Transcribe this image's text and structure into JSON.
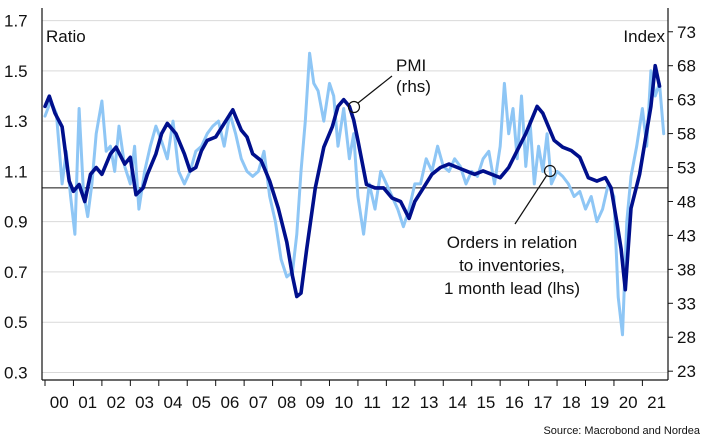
{
  "chart_data": {
    "type": "line",
    "ylabel_left": "Ratio",
    "ylabel_right": "Index",
    "left_axis": {
      "ylim": [
        0.27,
        1.75
      ],
      "ticks": [
        "0.3",
        "0.5",
        "0.7",
        "0.9",
        "1.1",
        "1.3",
        "1.5",
        "1.7"
      ],
      "tick_values": [
        0.3,
        0.5,
        0.7,
        0.9,
        1.1,
        1.3,
        1.5,
        1.7
      ]
    },
    "right_axis": {
      "ylim": [
        21.7,
        76.5
      ],
      "ticks": [
        "23",
        "28",
        "33",
        "38",
        "43",
        "48",
        "53",
        "58",
        "63",
        "68",
        "73"
      ],
      "tick_values": [
        23,
        28,
        33,
        38,
        43,
        48,
        53,
        58,
        63,
        68,
        73
      ]
    },
    "x_ticks": [
      "00",
      "01",
      "02",
      "03",
      "04",
      "05",
      "06",
      "07",
      "08",
      "09",
      "10",
      "11",
      "12",
      "13",
      "14",
      "15",
      "16",
      "17",
      "18",
      "19",
      "20",
      "21"
    ],
    "x_range": [
      2000.0,
      2021.9
    ],
    "reference_line": {
      "axis": "right",
      "value": 50
    },
    "grid": "horizontal",
    "series": [
      {
        "name": "PMI (rhs)",
        "axis": "right",
        "color": "#000f8c",
        "x": [
          2000.0,
          2000.15,
          2000.35,
          2000.6,
          2000.85,
          2001.0,
          2001.2,
          2001.4,
          2001.6,
          2001.8,
          2002.0,
          2002.3,
          2002.5,
          2002.8,
          2003.0,
          2003.2,
          2003.45,
          2003.6,
          2003.9,
          2004.1,
          2004.3,
          2004.6,
          2004.9,
          2005.1,
          2005.3,
          2005.5,
          2005.7,
          2006.0,
          2006.3,
          2006.6,
          2006.9,
          2007.1,
          2007.3,
          2007.6,
          2007.9,
          2008.2,
          2008.5,
          2008.7,
          2008.85,
          2009.0,
          2009.2,
          2009.5,
          2009.8,
          2010.1,
          2010.3,
          2010.5,
          2010.7,
          2010.85,
          2011.0,
          2011.3,
          2011.6,
          2011.9,
          2012.2,
          2012.5,
          2012.8,
          2013.0,
          2013.3,
          2013.6,
          2013.9,
          2014.2,
          2014.5,
          2014.8,
          2015.1,
          2015.4,
          2015.7,
          2016.0,
          2016.3,
          2016.6,
          2016.9,
          2017.1,
          2017.3,
          2017.5,
          2017.7,
          2017.9,
          2018.2,
          2018.5,
          2018.8,
          2019.1,
          2019.4,
          2019.7,
          2019.9,
          2020.1,
          2020.25,
          2020.4,
          2020.6,
          2020.9,
          2021.1,
          2021.3,
          2021.45,
          2021.6
        ],
        "values": [
          62,
          63.5,
          61,
          59,
          51,
          49.5,
          50.5,
          48,
          52,
          53,
          52,
          55,
          56,
          53.5,
          54.5,
          49,
          50,
          52,
          55,
          58,
          59.5,
          58,
          55,
          52.5,
          53,
          55.5,
          57,
          57.5,
          59.5,
          61.5,
          58.5,
          57.5,
          55,
          54,
          51,
          47,
          42,
          37,
          34,
          34.5,
          41,
          50,
          56,
          59,
          62,
          63,
          62,
          60,
          57,
          50.5,
          50,
          50,
          48.5,
          48,
          45.5,
          48,
          50,
          52,
          53,
          53.5,
          53,
          52.5,
          52,
          52.5,
          52,
          51.5,
          53,
          55.5,
          58,
          60,
          62,
          61,
          59,
          57,
          56,
          55.5,
          54.5,
          51.5,
          51,
          51.5,
          50,
          45,
          41,
          35,
          47,
          52,
          57,
          62,
          68,
          65
        ]
      },
      {
        "name": "Orders in relation to inventories, 1 month lead (lhs)",
        "axis": "left",
        "color": "#8ec6f5",
        "x": [
          2000.0,
          2000.2,
          2000.4,
          2000.6,
          2000.75,
          2000.9,
          2001.05,
          2001.2,
          2001.35,
          2001.5,
          2001.65,
          2001.8,
          2002.0,
          2002.15,
          2002.3,
          2002.45,
          2002.6,
          2002.8,
          2003.0,
          2003.15,
          2003.3,
          2003.5,
          2003.7,
          2003.9,
          2004.1,
          2004.3,
          2004.5,
          2004.7,
          2004.9,
          2005.1,
          2005.3,
          2005.5,
          2005.7,
          2005.9,
          2006.1,
          2006.3,
          2006.5,
          2006.7,
          2006.9,
          2007.1,
          2007.3,
          2007.5,
          2007.7,
          2007.9,
          2008.1,
          2008.3,
          2008.5,
          2008.7,
          2008.85,
          2009.0,
          2009.15,
          2009.3,
          2009.45,
          2009.6,
          2009.8,
          2010.0,
          2010.15,
          2010.3,
          2010.5,
          2010.7,
          2010.85,
          2011.0,
          2011.2,
          2011.4,
          2011.6,
          2011.8,
          2012.0,
          2012.2,
          2012.4,
          2012.6,
          2012.8,
          2013.0,
          2013.2,
          2013.4,
          2013.6,
          2013.8,
          2014.0,
          2014.2,
          2014.4,
          2014.6,
          2014.8,
          2015.0,
          2015.2,
          2015.4,
          2015.6,
          2015.8,
          2016.0,
          2016.15,
          2016.3,
          2016.45,
          2016.6,
          2016.75,
          2016.9,
          2017.05,
          2017.2,
          2017.35,
          2017.5,
          2017.65,
          2017.8,
          2018.0,
          2018.2,
          2018.4,
          2018.6,
          2018.8,
          2019.0,
          2019.2,
          2019.4,
          2019.6,
          2019.8,
          2020.0,
          2020.15,
          2020.3,
          2020.45,
          2020.6,
          2020.8,
          2021.0,
          2021.15,
          2021.3,
          2021.45,
          2021.6,
          2021.75
        ],
        "values": [
          1.32,
          1.38,
          1.33,
          1.05,
          1.18,
          1.0,
          0.85,
          1.35,
          1.02,
          0.92,
          1.05,
          1.25,
          1.38,
          1.18,
          1.2,
          1.1,
          1.28,
          1.12,
          1.05,
          1.2,
          0.95,
          1.1,
          1.2,
          1.28,
          1.22,
          1.15,
          1.3,
          1.1,
          1.05,
          1.1,
          1.18,
          1.2,
          1.25,
          1.28,
          1.3,
          1.2,
          1.33,
          1.25,
          1.15,
          1.1,
          1.08,
          1.1,
          1.18,
          1.0,
          0.9,
          0.75,
          0.68,
          0.7,
          0.85,
          1.1,
          1.3,
          1.57,
          1.45,
          1.42,
          1.3,
          1.45,
          1.4,
          1.2,
          1.35,
          1.15,
          1.25,
          1.0,
          0.85,
          1.05,
          0.95,
          1.1,
          1.05,
          1.0,
          0.95,
          0.88,
          0.95,
          1.05,
          1.05,
          1.15,
          1.1,
          1.2,
          1.12,
          1.1,
          1.15,
          1.12,
          1.05,
          1.1,
          1.08,
          1.15,
          1.18,
          1.05,
          1.2,
          1.45,
          1.25,
          1.35,
          1.15,
          1.4,
          1.12,
          1.3,
          1.05,
          1.2,
          1.1,
          1.25,
          1.05,
          1.1,
          1.08,
          1.05,
          1.0,
          1.02,
          0.95,
          1.0,
          0.9,
          0.95,
          1.05,
          1.0,
          0.6,
          0.45,
          0.9,
          1.08,
          1.2,
          1.35,
          1.2,
          1.5,
          1.4,
          1.45,
          1.25
        ]
      }
    ],
    "annotations": [
      {
        "lines": [
          "PMI",
          "(rhs)"
        ]
      },
      {
        "lines": [
          "Orders in relation",
          "to inventories,",
          "1 month lead (lhs)"
        ]
      }
    ],
    "source": "Source: Macrobond and Nordea"
  }
}
